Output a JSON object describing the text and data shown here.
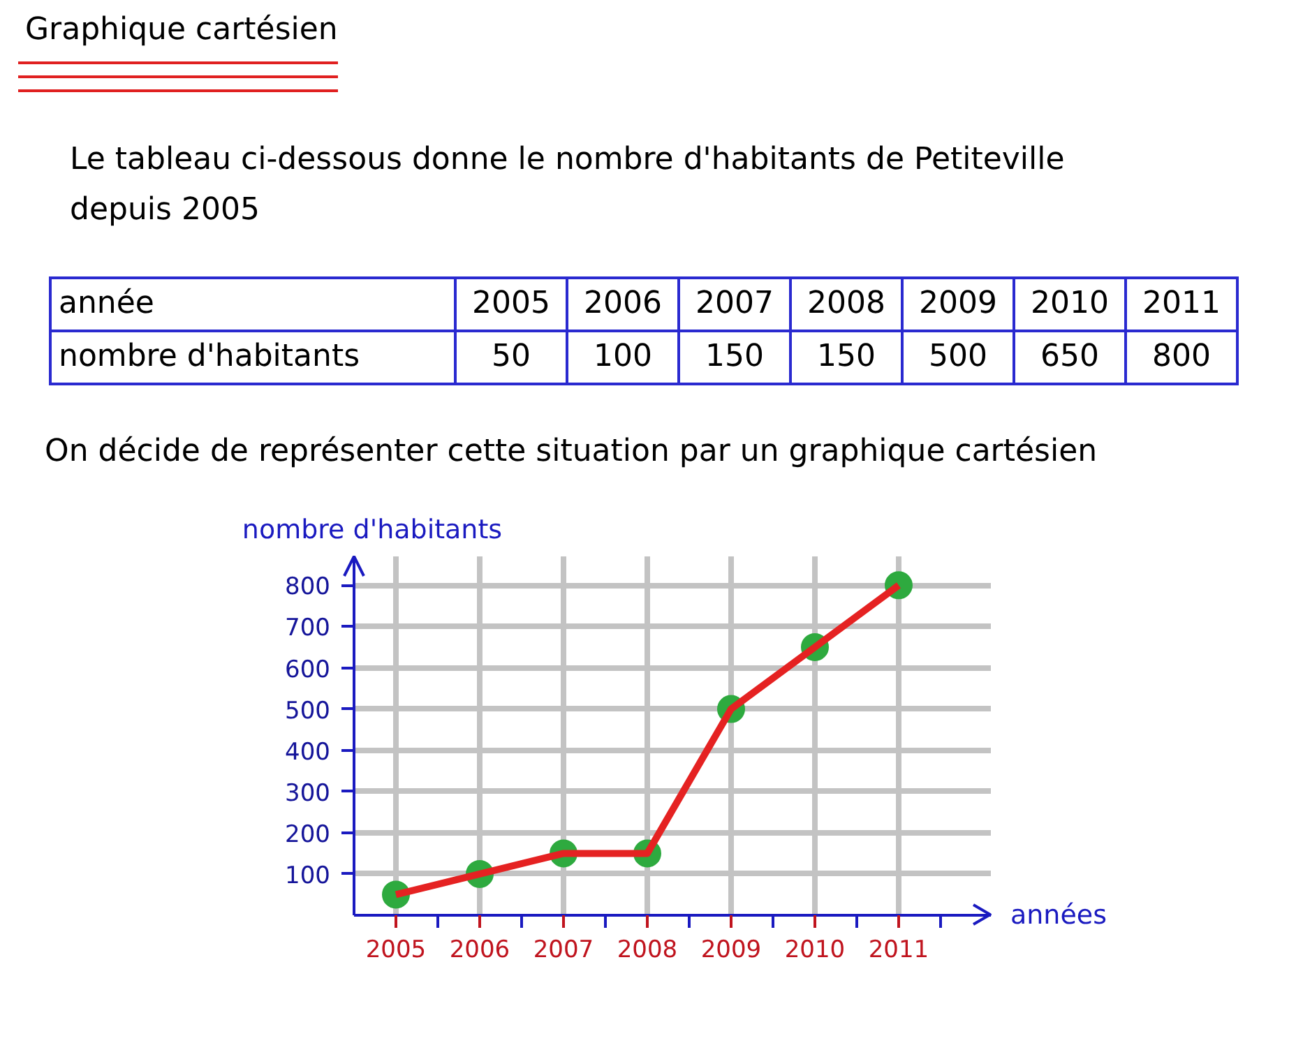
{
  "chart_data": {
    "type": "line",
    "title": "Graphique cartésien",
    "subtitle": "Le tableau ci-dessous donne le nombre d'habitants de Petiteville depuis 2005",
    "xlabel": "années",
    "ylabel": "nombre d'habitants",
    "annotations": [
      "On décide de représenter cette situation par un graphique cartésien",
      "année",
      "2005",
      "2006",
      "2007",
      "2008",
      "2009",
      "2010",
      "2011",
      "nombre d'habitants",
      "50",
      "100",
      "150",
      "150",
      "500",
      "650",
      "800"
    ],
    "x": [
      2005,
      2006,
      2007,
      2008,
      2009,
      2010,
      2011
    ],
    "series": [
      {
        "color": "#e52222",
        "colors": [
          "#2eaa3f",
          "#2eaa3f",
          "#2eaa3f",
          "#2eaa3f",
          "#2eaa3f",
          "#2eaa3f",
          "#2eaa3f"
        ],
        "values": [
          50,
          100,
          150,
          150,
          500,
          650,
          800
        ]
      }
    ],
    "xlim": [
      2004.5,
      2012.1
    ],
    "xticks": [
      2005,
      {
        "value": 2005.5,
        "label": null
      },
      2006,
      {
        "value": 2006.5,
        "label": null
      },
      2007,
      {
        "value": 2007.5,
        "label": null
      },
      2008,
      {
        "value": 2008.5,
        "label": null
      },
      2009,
      {
        "value": 2009.5,
        "label": null
      },
      2010,
      {
        "value": 2010.5,
        "label": null
      },
      2011,
      {
        "value": 2011.5,
        "label": null
      }
    ],
    "ylim": [
      0,
      870
    ],
    "yticks": [
      100,
      200,
      300,
      400,
      500,
      600,
      700,
      800
    ],
    "grid": true,
    "marker": "circle",
    "line_style": "solid"
  }
}
